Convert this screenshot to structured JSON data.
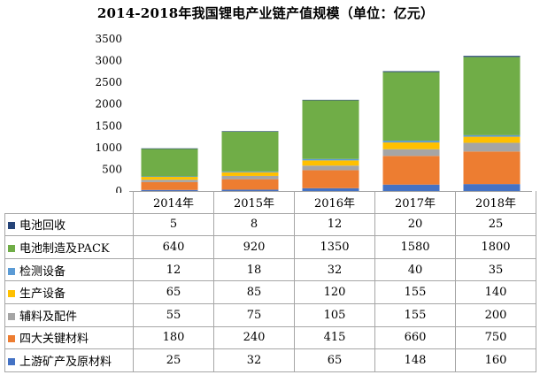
{
  "chart_data": {
    "type": "bar",
    "stacked": true,
    "title": "2014-2018年我国锂电产业链产值规模（单位：亿元）",
    "categories": [
      "2014年",
      "2015年",
      "2016年",
      "2017年",
      "2018年"
    ],
    "ylim": [
      0,
      3500
    ],
    "yticks": [
      0,
      500,
      1000,
      1500,
      2000,
      2500,
      3000,
      3500
    ],
    "grid": false,
    "legend": "data-table-rows",
    "series": [
      {
        "name": "上游矿产及原材料",
        "color": "#4472c4",
        "values": [
          25,
          32,
          65,
          148,
          160
        ]
      },
      {
        "name": "四大关键材料",
        "color": "#ed7d31",
        "values": [
          180,
          240,
          415,
          660,
          750
        ]
      },
      {
        "name": "辅料及配件",
        "color": "#a5a5a5",
        "values": [
          55,
          75,
          105,
          155,
          200
        ]
      },
      {
        "name": "生产设备",
        "color": "#ffc000",
        "values": [
          65,
          85,
          120,
          155,
          140
        ]
      },
      {
        "name": "检测设备",
        "color": "#5b9bd5",
        "values": [
          12,
          18,
          32,
          40,
          35
        ]
      },
      {
        "name": "电池制造及PACK",
        "color": "#70ad47",
        "values": [
          640,
          920,
          1350,
          1580,
          1800
        ]
      },
      {
        "name": "电池回收",
        "color": "#264478",
        "values": [
          5,
          8,
          12,
          20,
          25
        ]
      }
    ]
  }
}
